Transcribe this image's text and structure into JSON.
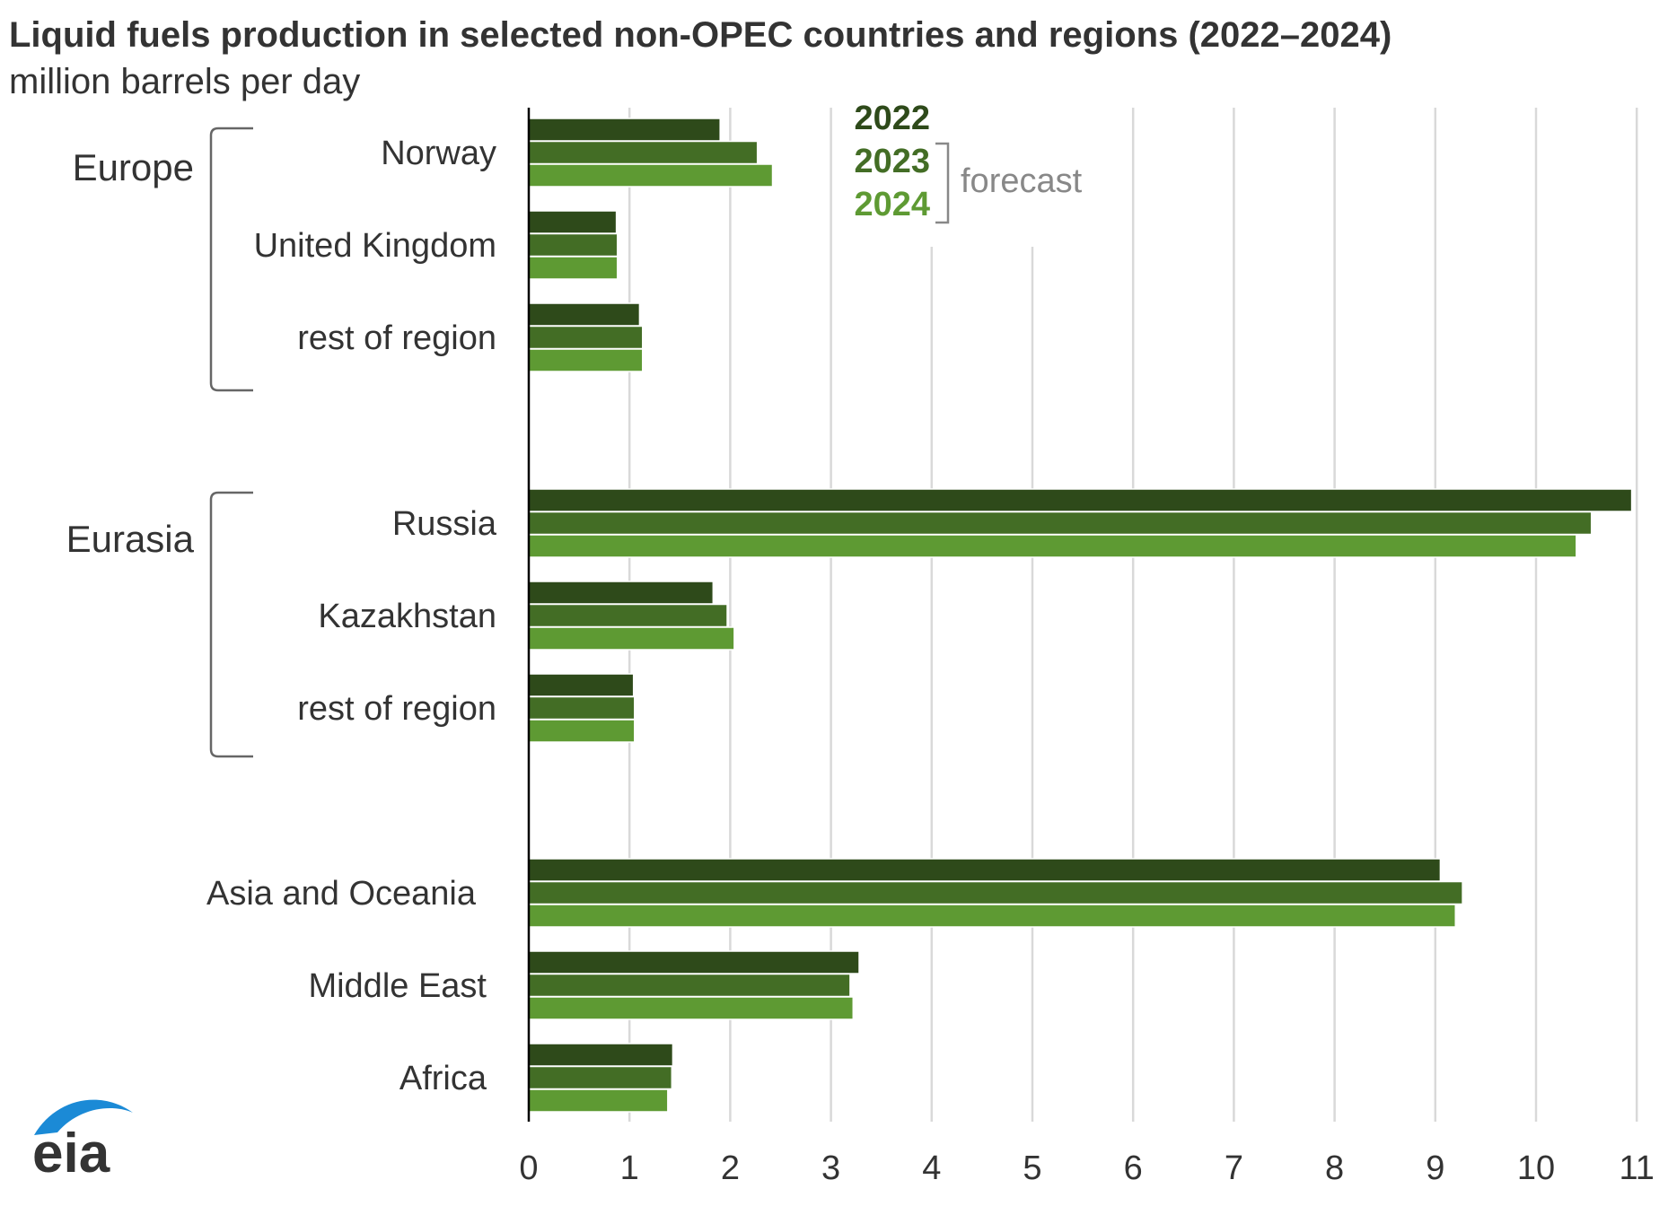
{
  "title": "Liquid fuels production in selected non-OPEC countries and regions (2022–2024)",
  "subtitle": "million barrels per day",
  "legend": {
    "items": [
      "2022",
      "2023",
      "2024"
    ],
    "forecast_label": "forecast"
  },
  "groups": [
    {
      "label": "Europe"
    },
    {
      "label": "Eurasia"
    }
  ],
  "logo_text": "eia",
  "colors": {
    "series_2022": "#2e4a1a",
    "series_2023": "#436d25",
    "series_2024": "#5e9a33",
    "grid": "#d9d9d9",
    "axis": "#000000",
    "bracket": "#666666"
  },
  "chart_data": {
    "type": "bar",
    "orientation": "horizontal",
    "title": "Liquid fuels production in selected non-OPEC countries and regions (2022–2024)",
    "subtitle": "million barrels per day",
    "categories": [
      "Norway",
      "United Kingdom",
      "rest of region",
      "Russia",
      "Kazakhstan",
      "rest of region",
      "Asia and Oceania",
      "Middle East",
      "Africa"
    ],
    "category_groups": [
      "Europe",
      "Europe",
      "Europe",
      "Eurasia",
      "Eurasia",
      "Eurasia",
      "",
      "",
      ""
    ],
    "series": [
      {
        "name": "2022",
        "values": [
          1.9,
          0.87,
          1.1,
          10.95,
          1.83,
          1.04,
          9.05,
          3.28,
          1.43
        ]
      },
      {
        "name": "2023",
        "values": [
          2.27,
          0.88,
          1.13,
          10.55,
          1.97,
          1.05,
          9.27,
          3.19,
          1.42
        ]
      },
      {
        "name": "2024",
        "values": [
          2.42,
          0.88,
          1.13,
          10.4,
          2.04,
          1.05,
          9.2,
          3.22,
          1.38
        ]
      }
    ],
    "forecast_series": [
      "2023",
      "2024"
    ],
    "xlim": [
      0,
      11
    ],
    "xticks": [
      0,
      1,
      2,
      3,
      4,
      5,
      6,
      7,
      8,
      9,
      10,
      11
    ],
    "grid": true,
    "legend_position": "top-center"
  }
}
